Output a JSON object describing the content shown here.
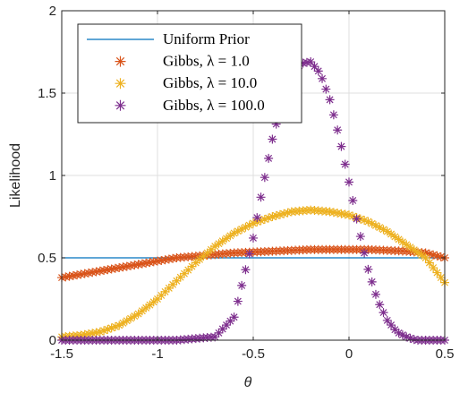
{
  "chart_data": {
    "type": "scatter",
    "xlabel": "θ",
    "ylabel": "Likelihood",
    "xlim": [
      -1.5,
      0.5
    ],
    "ylim": [
      0,
      2
    ],
    "x_ticks": [
      "-1.5",
      "-1",
      "-0.5",
      "0",
      "0.5"
    ],
    "y_ticks": [
      "0",
      "0.5",
      "1",
      "1.5",
      "2"
    ],
    "grid": true,
    "legend_position": "top-left",
    "series": [
      {
        "name": "Uniform Prior",
        "kind": "line",
        "color": "#0072bd",
        "x": [
          -1.5,
          0.5
        ],
        "y": [
          0.5,
          0.5
        ]
      },
      {
        "name": "Gibbs, λ = 1.0",
        "kind": "markers",
        "marker": "asterisk",
        "color": "#d95319",
        "x": [
          -1.5,
          -1.4,
          -1.3,
          -1.2,
          -1.1,
          -1.0,
          -0.9,
          -0.8,
          -0.7,
          -0.6,
          -0.5,
          -0.4,
          -0.3,
          -0.2,
          -0.1,
          0.0,
          0.1,
          0.2,
          0.3,
          0.4,
          0.5
        ],
        "y": [
          0.38,
          0.4,
          0.42,
          0.44,
          0.46,
          0.48,
          0.5,
          0.51,
          0.52,
          0.53,
          0.535,
          0.54,
          0.545,
          0.55,
          0.55,
          0.55,
          0.55,
          0.545,
          0.54,
          0.53,
          0.5
        ]
      },
      {
        "name": "Gibbs, λ = 10.0",
        "kind": "markers",
        "marker": "asterisk",
        "color": "#edb120",
        "x": [
          -1.5,
          -1.4,
          -1.3,
          -1.2,
          -1.1,
          -1.0,
          -0.9,
          -0.8,
          -0.7,
          -0.6,
          -0.5,
          -0.4,
          -0.3,
          -0.2,
          -0.1,
          0.0,
          0.1,
          0.2,
          0.3,
          0.4,
          0.5
        ],
        "y": [
          0.02,
          0.03,
          0.05,
          0.09,
          0.16,
          0.25,
          0.36,
          0.47,
          0.57,
          0.65,
          0.71,
          0.75,
          0.78,
          0.79,
          0.78,
          0.76,
          0.72,
          0.66,
          0.58,
          0.5,
          0.35
        ]
      },
      {
        "name": "Gibbs, λ = 100.0",
        "kind": "markers",
        "marker": "asterisk",
        "color": "#7e2f8e",
        "x": [
          -1.5,
          -1.4,
          -1.3,
          -1.2,
          -1.1,
          -1.0,
          -0.9,
          -0.8,
          -0.7,
          -0.6,
          -0.5,
          -0.45,
          -0.4,
          -0.35,
          -0.3,
          -0.25,
          -0.2,
          -0.15,
          -0.1,
          -0.05,
          0.0,
          0.05,
          0.1,
          0.15,
          0.2,
          0.25,
          0.3,
          0.35,
          0.4,
          0.45,
          0.5
        ],
        "y": [
          0.0,
          0.0,
          0.0,
          0.0,
          0.0,
          0.0,
          0.0,
          0.01,
          0.02,
          0.14,
          0.62,
          0.93,
          1.22,
          1.45,
          1.61,
          1.68,
          1.69,
          1.62,
          1.46,
          1.23,
          0.96,
          0.68,
          0.43,
          0.24,
          0.12,
          0.05,
          0.02,
          0.0,
          0.0,
          0.0,
          0.0
        ]
      }
    ]
  }
}
